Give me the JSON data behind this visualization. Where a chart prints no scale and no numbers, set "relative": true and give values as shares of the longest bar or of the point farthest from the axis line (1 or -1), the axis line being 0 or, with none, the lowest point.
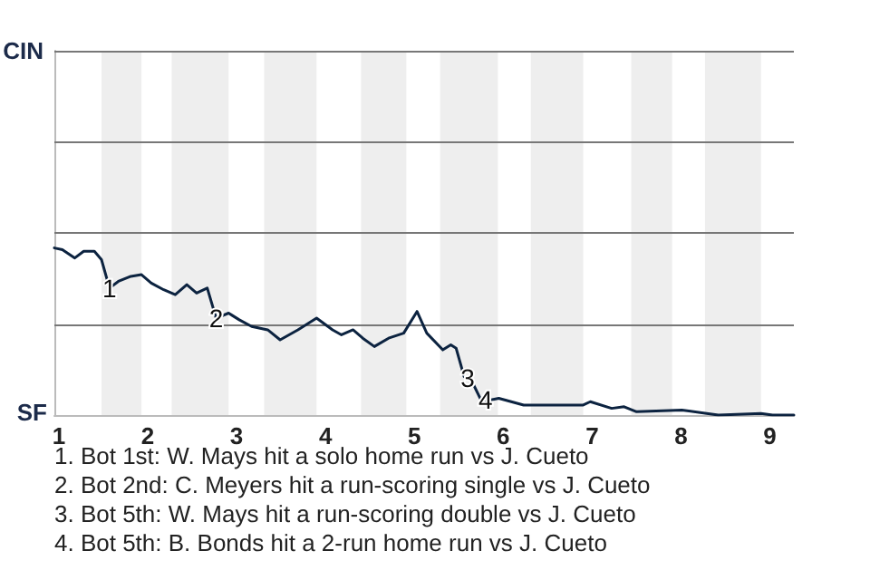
{
  "chart_data": {
    "type": "line",
    "relative": true,
    "x": [
      0.95,
      1.04,
      1.18,
      1.28,
      1.4,
      1.48,
      1.57,
      1.67,
      1.81,
      1.93,
      2.04,
      2.18,
      2.31,
      2.44,
      2.55,
      2.67,
      2.77,
      2.91,
      3.03,
      3.17,
      3.35,
      3.49,
      3.69,
      3.9,
      4.08,
      4.18,
      4.31,
      4.42,
      4.55,
      4.71,
      4.88,
      5.03,
      5.14,
      5.32,
      5.41,
      5.47,
      5.56,
      5.64,
      5.75,
      5.85,
      5.95,
      6.23,
      6.9,
      6.98,
      7.22,
      7.36,
      7.5,
      8.01,
      8.29,
      8.42,
      8.9,
      9.03,
      9.27
    ],
    "series": [
      {
        "color": "#0c2340",
        "values": [
          1.0,
          0.99,
          0.94,
          0.98,
          0.98,
          0.93,
          0.76,
          0.8,
          0.83,
          0.84,
          0.79,
          0.75,
          0.72,
          0.78,
          0.73,
          0.76,
          0.58,
          0.61,
          0.57,
          0.53,
          0.51,
          0.45,
          0.51,
          0.58,
          0.51,
          0.48,
          0.51,
          0.46,
          0.41,
          0.46,
          0.49,
          0.62,
          0.49,
          0.39,
          0.42,
          0.4,
          0.23,
          0.21,
          0.09,
          0.09,
          0.1,
          0.06,
          0.06,
          0.08,
          0.04,
          0.05,
          0.02,
          0.03,
          0.01,
          0,
          0.01,
          0,
          0
        ]
      }
    ],
    "xlim": [
      0.95,
      9.27
    ],
    "xticks": [
      1,
      2,
      3,
      4,
      5,
      6,
      7,
      8,
      9
    ],
    "marker": "none",
    "ref_lines": [
      {
        "axis": "y",
        "value": 0.54,
        "color": "#777777"
      },
      {
        "axis": "y",
        "value": 1.09,
        "color": "#777777"
      },
      {
        "axis": "y",
        "value": 1.63,
        "color": "#777777"
      },
      {
        "axis": "y",
        "value": 2.18,
        "label": "CIN",
        "color": "#777777"
      }
    ],
    "bands": [
      {
        "axis": "x",
        "from": 1.48,
        "to": 1.93,
        "color": "#eeeeee"
      },
      {
        "axis": "x",
        "from": 2.27,
        "to": 2.91,
        "color": "#eeeeee"
      },
      {
        "axis": "x",
        "from": 3.31,
        "to": 3.9,
        "color": "#eeeeee"
      },
      {
        "axis": "x",
        "from": 4.4,
        "to": 4.91,
        "color": "#eeeeee"
      },
      {
        "axis": "x",
        "from": 5.29,
        "to": 5.94,
        "color": "#eeeeee"
      },
      {
        "axis": "x",
        "from": 6.31,
        "to": 6.9,
        "color": "#eeeeee"
      },
      {
        "axis": "x",
        "from": 7.44,
        "to": 7.9,
        "color": "#eeeeee"
      },
      {
        "axis": "x",
        "from": 8.27,
        "to": 8.9,
        "color": "#eeeeee"
      }
    ],
    "annotations": [
      {
        "text": "1",
        "x": 1.57,
        "y": 0.76
      },
      {
        "text": "2",
        "x": 2.77,
        "y": 0.58
      },
      {
        "text": "3",
        "x": 5.6,
        "y": 0.22
      },
      {
        "text": "4",
        "x": 5.8,
        "y": 0.09
      },
      "SF",
      "1. Bot 1st: W. Mays hit a solo home run vs J. Cueto",
      "2. Bot 2nd: C. Meyers hit a run-scoring single vs J. Cueto",
      "3. Bot 5th: W. Mays hit a run-scoring double vs J. Cueto",
      "4. Bot 5th: B. Bonds hit a 2-run home run vs J. Cueto"
    ]
  }
}
